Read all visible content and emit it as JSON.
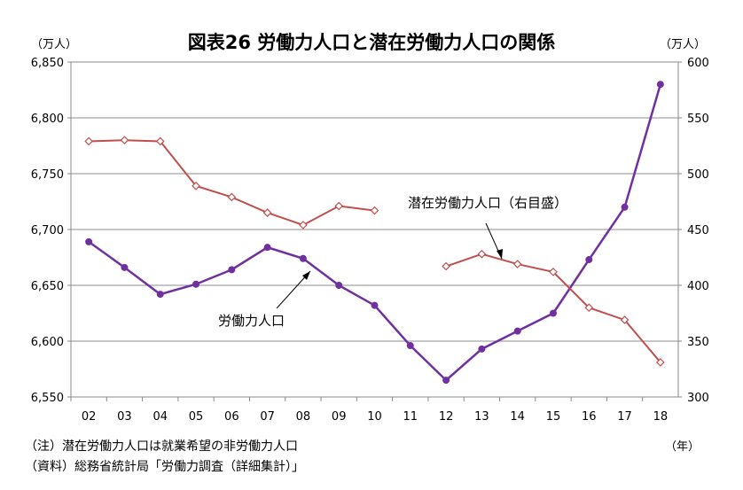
{
  "chart_data": {
    "type": "line",
    "title": "図表26 労働力人口と潜在労働力人口の関係",
    "left_unit": "（万人）",
    "right_unit": "（万人）",
    "x_unit": "（年）",
    "categories": [
      "02",
      "03",
      "04",
      "05",
      "06",
      "07",
      "08",
      "09",
      "10",
      "11",
      "12",
      "13",
      "14",
      "15",
      "16",
      "17",
      "18"
    ],
    "left_axis": {
      "ylim": [
        6550,
        6850
      ],
      "ticks": [
        "6,550",
        "6,600",
        "6,650",
        "6,700",
        "6,750",
        "6,800",
        "6,850"
      ]
    },
    "right_axis": {
      "ylim": [
        300,
        600
      ],
      "ticks": [
        "300",
        "350",
        "400",
        "450",
        "500",
        "550",
        "600"
      ]
    },
    "grid": true,
    "series": [
      {
        "name": "労働力人口",
        "axis": "left",
        "color": "#7030A0",
        "marker": "circle",
        "values": [
          6689,
          6666,
          6642,
          6651,
          6664,
          6684,
          6674,
          6650,
          6632,
          6596,
          6565,
          6593,
          6609,
          6625,
          6673,
          6720,
          6830
        ]
      },
      {
        "name": "潜在労働力人口（右目盛）",
        "axis": "right",
        "color": "#C0504D",
        "marker": "diamond",
        "values": [
          529,
          530,
          529,
          489,
          479,
          465,
          454,
          471,
          467,
          null,
          417,
          428,
          419,
          412,
          380,
          369,
          331
        ]
      }
    ],
    "annotations": [
      {
        "text": "労働力人口"
      },
      {
        "text": "潜在労働力人口（右目盛）"
      }
    ],
    "notes": [
      "（注）潜在労働力人口は就業希望の非労働力人口",
      "（資料）総務省統計局「労働力調査（詳細集計）」"
    ]
  }
}
